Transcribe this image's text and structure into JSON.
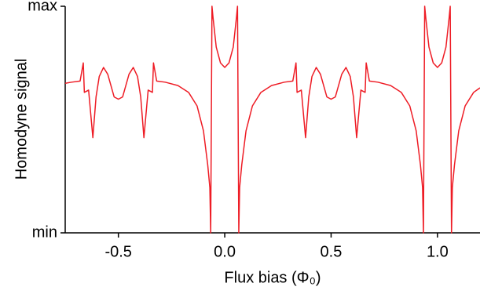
{
  "chart_data": {
    "type": "line",
    "xlabel": "Flux bias (Φ₀)",
    "ylabel": "Homodyne signal",
    "xlim": [
      -0.75,
      1.2
    ],
    "ylim": [
      0,
      1
    ],
    "xticks": [
      -0.5,
      {
        "value": 0,
        "label": "0.0"
      },
      0.5,
      {
        "value": 1,
        "label": "1.0"
      }
    ],
    "yticks": [
      {
        "value": 0,
        "label": "min"
      },
      {
        "value": 1,
        "label": "max"
      }
    ],
    "x": [
      -0.75,
      -0.72,
      -0.68,
      -0.665,
      -0.66,
      -0.64,
      -0.62,
      -0.605,
      -0.59,
      -0.57,
      -0.55,
      -0.52,
      -0.5,
      -0.48,
      -0.45,
      -0.43,
      -0.41,
      -0.395,
      -0.38,
      -0.36,
      -0.34,
      -0.335,
      -0.32,
      -0.28,
      -0.22,
      -0.17,
      -0.13,
      -0.1,
      -0.08,
      -0.07,
      -0.066,
      -0.063,
      -0.06,
      -0.055,
      -0.04,
      -0.02,
      0,
      0.02,
      0.04,
      0.055,
      0.06,
      0.063,
      0.066,
      0.07,
      0.08,
      0.1,
      0.13,
      0.17,
      0.22,
      0.28,
      0.32,
      0.335,
      0.34,
      0.36,
      0.38,
      0.395,
      0.41,
      0.43,
      0.45,
      0.48,
      0.5,
      0.52,
      0.55,
      0.57,
      0.59,
      0.605,
      0.62,
      0.64,
      0.66,
      0.665,
      0.68,
      0.72,
      0.78,
      0.83,
      0.87,
      0.9,
      0.92,
      0.93,
      0.934,
      0.937,
      0.94,
      0.945,
      0.96,
      0.98,
      1.0,
      1.02,
      1.04,
      1.055,
      1.06,
      1.063,
      1.066,
      1.07,
      1.08,
      1.1,
      1.13,
      1.17,
      1.2
    ],
    "series": [
      {
        "color": "#ee1c25",
        "values": [
          0.66,
          0.665,
          0.67,
          0.75,
          0.62,
          0.63,
          0.42,
          0.6,
          0.69,
          0.73,
          0.7,
          0.6,
          0.59,
          0.6,
          0.7,
          0.73,
          0.69,
          0.6,
          0.42,
          0.63,
          0.62,
          0.75,
          0.67,
          0.665,
          0.65,
          0.62,
          0.56,
          0.45,
          0.3,
          0.2,
          0.0,
          0.5,
          1.0,
          0.95,
          0.82,
          0.75,
          0.73,
          0.75,
          0.82,
          0.95,
          1.0,
          0.5,
          0.0,
          0.2,
          0.3,
          0.45,
          0.56,
          0.62,
          0.65,
          0.665,
          0.67,
          0.75,
          0.62,
          0.63,
          0.42,
          0.6,
          0.69,
          0.73,
          0.7,
          0.6,
          0.59,
          0.6,
          0.7,
          0.73,
          0.69,
          0.6,
          0.42,
          0.63,
          0.62,
          0.75,
          0.67,
          0.665,
          0.65,
          0.62,
          0.56,
          0.45,
          0.3,
          0.2,
          0.0,
          0.5,
          1.0,
          0.95,
          0.82,
          0.75,
          0.73,
          0.75,
          0.82,
          0.95,
          1.0,
          0.5,
          0.0,
          0.2,
          0.3,
          0.45,
          0.56,
          0.62,
          0.64
        ]
      }
    ]
  }
}
